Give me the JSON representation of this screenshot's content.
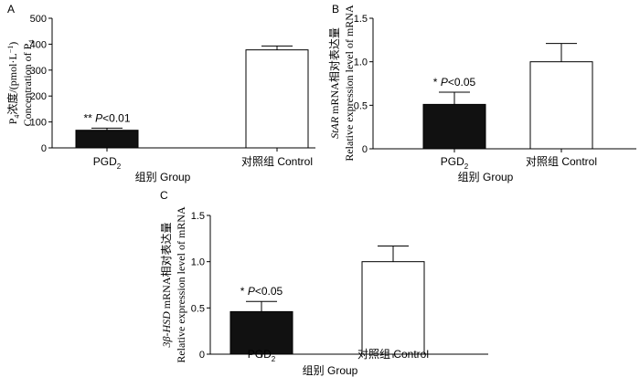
{
  "chart_data": [
    {
      "panel_label": "A",
      "type": "bar",
      "categories": [
        "PGD2",
        "对照组  Control"
      ],
      "category_display": [
        {
          "main": "PGD",
          "sub": "2",
          "rest": ""
        },
        {
          "main": "对照组  Control",
          "sub": "",
          "rest": ""
        }
      ],
      "values": [
        68,
        378
      ],
      "errors": [
        8,
        15
      ],
      "bar_colors": [
        "#111111",
        "#ffffff"
      ],
      "ylim": [
        0,
        500
      ],
      "yticks": [
        0,
        100,
        200,
        300,
        400,
        500
      ],
      "xlabel": "组别  Group",
      "ylabel_line1": [
        {
          "t": "P",
          "style": "normal"
        },
        {
          "t": "4",
          "style": "sub"
        },
        {
          "t": "浓度/(pmol·L",
          "style": "normal"
        },
        {
          "t": "−1",
          "style": "sup"
        },
        {
          "t": ")",
          "style": "normal"
        }
      ],
      "ylabel_line2": [
        {
          "t": "Concentration of P",
          "style": "normal"
        },
        {
          "t": "4",
          "style": "sub"
        }
      ],
      "annotation": {
        "bar_index": 0,
        "stars": "**",
        "p_italic": "P",
        "p_rest": "<0.01"
      }
    },
    {
      "panel_label": "B",
      "type": "bar",
      "categories": [
        "PGD2",
        "对照组  Control"
      ],
      "category_display": [
        {
          "main": "PGD",
          "sub": "2",
          "rest": ""
        },
        {
          "main": "对照组  Control",
          "sub": "",
          "rest": ""
        }
      ],
      "values": [
        0.51,
        1.0
      ],
      "errors": [
        0.14,
        0.21
      ],
      "bar_colors": [
        "#111111",
        "#ffffff"
      ],
      "ylim": [
        0,
        1.5
      ],
      "yticks": [
        0,
        0.5,
        1.0,
        1.5
      ],
      "ytick_labels": [
        "0",
        "0.5",
        "1.0",
        "1.5"
      ],
      "xlabel": "组别  Group",
      "ylabel_line1": [
        {
          "t": "StAR",
          "style": "italic"
        },
        {
          "t": " mRNA相对表达量",
          "style": "normal"
        }
      ],
      "ylabel_line2": [
        {
          "t": "Relative expression level of mRNA",
          "style": "normal"
        }
      ],
      "annotation": {
        "bar_index": 0,
        "stars": "*",
        "p_italic": "P",
        "p_rest": "<0.05"
      }
    },
    {
      "panel_label": "C",
      "type": "bar",
      "categories": [
        "PGD2",
        "对照组  Control"
      ],
      "category_display": [
        {
          "main": "PGD",
          "sub": "2",
          "rest": ""
        },
        {
          "main": "对照组  Control",
          "sub": "",
          "rest": ""
        }
      ],
      "values": [
        0.46,
        1.0
      ],
      "errors": [
        0.11,
        0.17
      ],
      "bar_colors": [
        "#111111",
        "#ffffff"
      ],
      "ylim": [
        0,
        1.5
      ],
      "yticks": [
        0,
        0.5,
        1.0,
        1.5
      ],
      "ytick_labels": [
        "0",
        "0.5",
        "1.0",
        "1.5"
      ],
      "xlabel": "组别  Group",
      "ylabel_line1": [
        {
          "t": "3β-HSD",
          "style": "italic"
        },
        {
          "t": " mRNA相对表达量",
          "style": "normal"
        }
      ],
      "ylabel_line2": [
        {
          "t": "Relative expression level of mRNA",
          "style": "normal"
        }
      ],
      "annotation": {
        "bar_index": 0,
        "stars": "*",
        "p_italic": "P",
        "p_rest": "<0.05"
      }
    }
  ]
}
